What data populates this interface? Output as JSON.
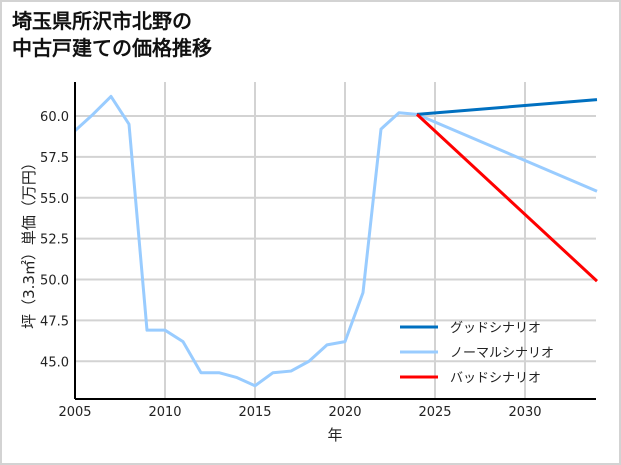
{
  "title": "埼玉県所沢市北野の\n中古戸建ての価格推移",
  "chart_data": {
    "type": "line",
    "title": "埼玉県所沢市北野の中古戸建ての価格推移",
    "xlabel": "年",
    "ylabel": "坪（3.3㎡）単価（万円）",
    "xlim": [
      2005,
      2034
    ],
    "ylim": [
      43.0,
      62.0
    ],
    "x_ticks": [
      2005,
      2010,
      2015,
      2020,
      2025,
      2030
    ],
    "y_ticks": [
      "45.0",
      "47.5",
      "50.0",
      "52.5",
      "55.0",
      "57.5",
      "60.0"
    ],
    "grid": true,
    "legend_position": "lower right",
    "series": [
      {
        "name": "グッドシナリオ",
        "color": "#0070c0",
        "x": [
          2024,
          2034
        ],
        "values": [
          60.1,
          61.0
        ]
      },
      {
        "name": "ノーマルシナリオ",
        "color": "#99ccff",
        "x": [
          2005,
          2006,
          2007,
          2008,
          2009,
          2010,
          2011,
          2012,
          2013,
          2014,
          2015,
          2016,
          2017,
          2018,
          2019,
          2020,
          2021,
          2022,
          2023,
          2024,
          2034
        ],
        "values": [
          59.1,
          60.1,
          61.2,
          59.5,
          46.9,
          46.9,
          46.2,
          44.3,
          44.3,
          44.0,
          43.5,
          44.3,
          44.4,
          45.0,
          46.0,
          46.2,
          49.2,
          59.2,
          60.2,
          60.1,
          55.4
        ]
      },
      {
        "name": "バッドシナリオ",
        "color": "#ff0000",
        "x": [
          2024,
          2034
        ],
        "values": [
          60.1,
          49.9
        ]
      }
    ]
  }
}
